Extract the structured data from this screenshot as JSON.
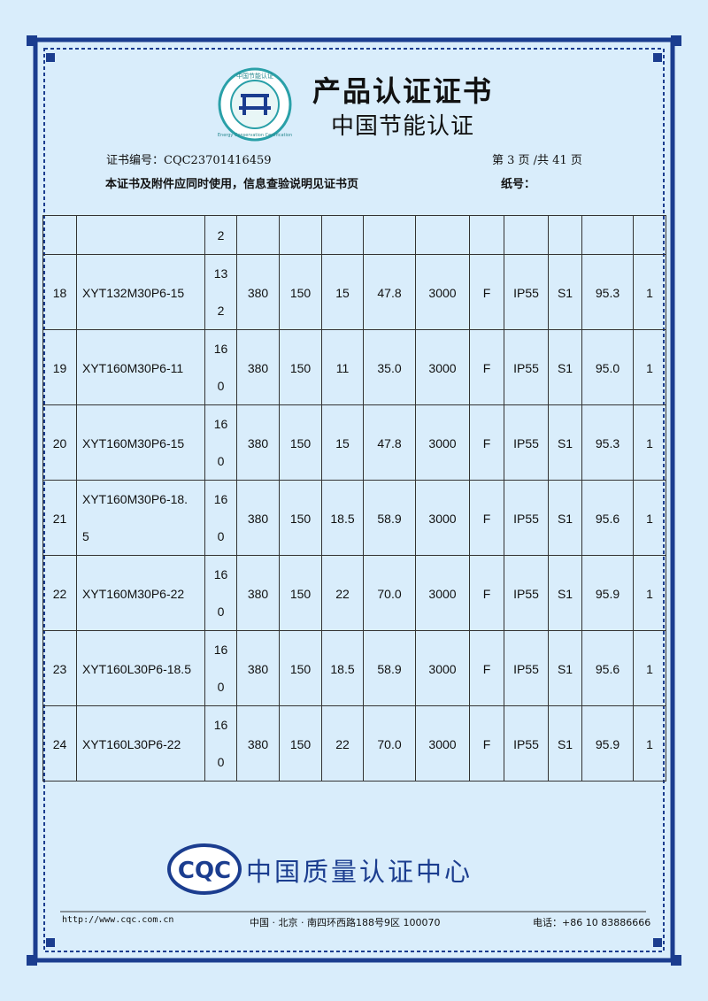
{
  "header": {
    "title": "产品认证证书",
    "subtitle": "中国节能认证",
    "logo_text": "中国节能认证",
    "logo_text_en": "Energy Conservation Certification"
  },
  "meta": {
    "cert_no": "证书编号：CQC23701416459",
    "page": "第 3 页 /共 41 页",
    "note": "本证书及附件应同时使用，信息查验说明见证书页",
    "paper_no": "纸号："
  },
  "table": {
    "rows": [
      [
        null,
        null,
        "2",
        null,
        null,
        null,
        null,
        null,
        null,
        null,
        null,
        null,
        null
      ],
      [
        "18",
        "XYT132M30P6-15",
        "132",
        "380",
        "150",
        "15",
        "47.8",
        "3000",
        "F",
        "IP55",
        "S1",
        "95.3",
        "1"
      ],
      [
        "19",
        "XYT160M30P6-11",
        "160",
        "380",
        "150",
        "11",
        "35.0",
        "3000",
        "F",
        "IP55",
        "S1",
        "95.0",
        "1"
      ],
      [
        "20",
        "XYT160M30P6-15",
        "160",
        "380",
        "150",
        "15",
        "47.8",
        "3000",
        "F",
        "IP55",
        "S1",
        "95.3",
        "1"
      ],
      [
        "21",
        "XYT160M30P6-18.5",
        "160",
        "380",
        "150",
        "18.5",
        "58.9",
        "3000",
        "F",
        "IP55",
        "S1",
        "95.6",
        "1"
      ],
      [
        "22",
        "XYT160M30P6-22",
        "160",
        "380",
        "150",
        "22",
        "70.0",
        "3000",
        "F",
        "IP55",
        "S1",
        "95.9",
        "1"
      ],
      [
        "23",
        "XYT160L30P6-18.5",
        "160",
        "380",
        "150",
        "18.5",
        "58.9",
        "3000",
        "F",
        "IP55",
        "S1",
        "95.6",
        "1"
      ],
      [
        "24",
        "XYT160L30P6-22",
        "160",
        "380",
        "150",
        "22",
        "70.0",
        "3000",
        "F",
        "IP55",
        "S1",
        "95.9",
        "1"
      ]
    ]
  },
  "footer": {
    "logo": "CQC",
    "org": "中国质量认证中心",
    "url": "http://www.cqc.com.cn",
    "address": "中国 · 北京 · 南四环西路188号9区   100070",
    "phone": "电话：+86 10 83886666"
  }
}
